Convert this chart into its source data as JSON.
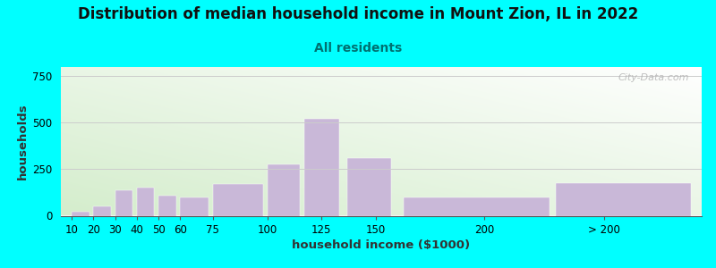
{
  "title": "Distribution of median household income in Mount Zion, IL in 2022",
  "subtitle": "All residents",
  "xlabel": "household income ($1000)",
  "ylabel": "households",
  "background_outer": "#00FFFF",
  "bar_color": "#c9b8d8",
  "title_fontsize": 12,
  "subtitle_fontsize": 10,
  "subtitle_color": "#007070",
  "xlabel_fontsize": 9.5,
  "ylabel_fontsize": 9.5,
  "tick_fontsize": 8.5,
  "values": [
    20,
    50,
    135,
    150,
    110,
    100,
    170,
    275,
    520,
    310,
    100,
    175
  ],
  "bar_lefts": [
    10,
    20,
    30,
    40,
    50,
    60,
    75,
    100,
    117,
    137,
    163,
    233
  ],
  "bar_rights": [
    18,
    28,
    38,
    48,
    58,
    73,
    98,
    115,
    133,
    157,
    230,
    295
  ],
  "xtick_positions": [
    10,
    20,
    30,
    40,
    50,
    60,
    75,
    100,
    125,
    150,
    200,
    255
  ],
  "xtick_labels": [
    "10",
    "20",
    "30",
    "40",
    "50",
    "60",
    "75",
    "100",
    "125",
    "150",
    "200",
    "> 200"
  ],
  "xlim": [
    5,
    300
  ],
  "ylim": [
    0,
    800
  ],
  "yticks": [
    0,
    250,
    500,
    750
  ],
  "watermark": "City-Data.com"
}
